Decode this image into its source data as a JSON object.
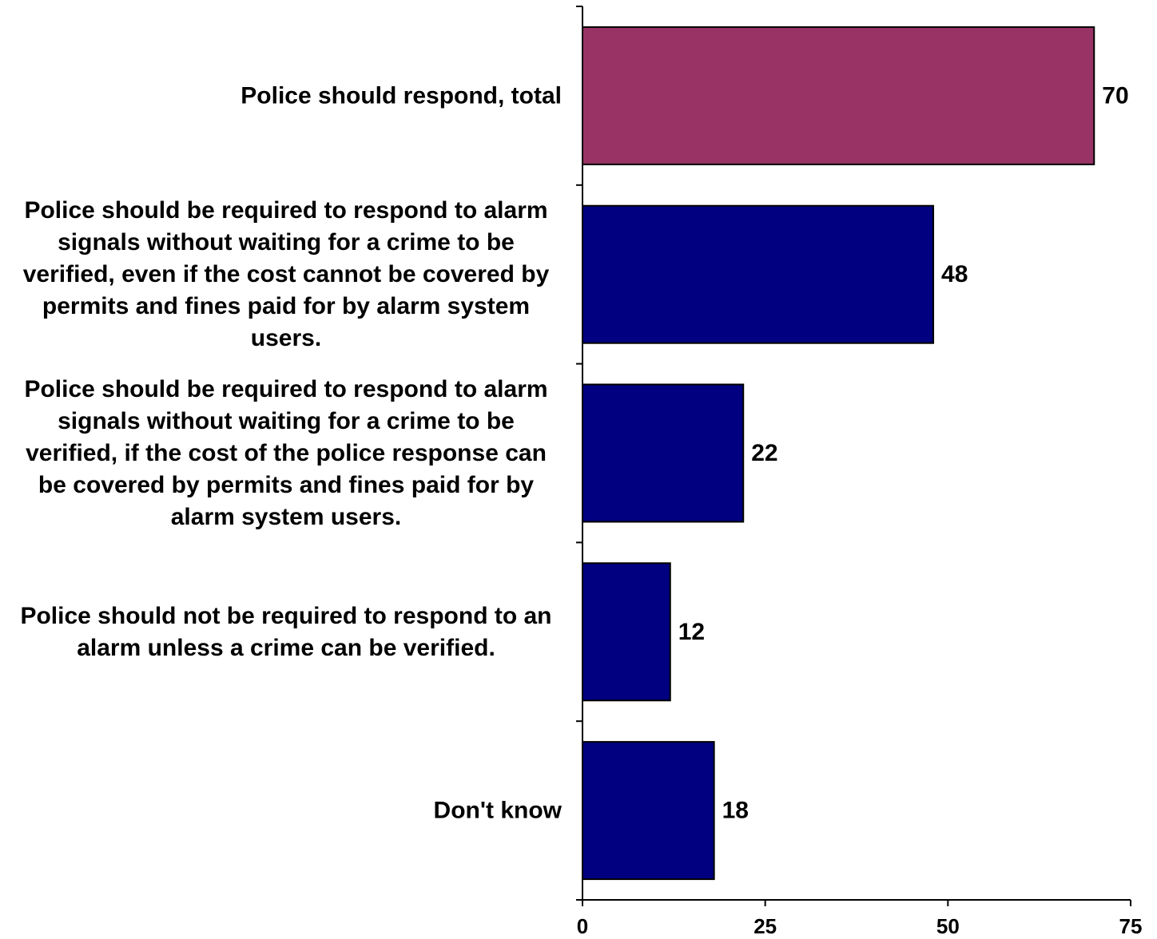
{
  "chart_data": {
    "type": "bar",
    "orientation": "horizontal",
    "categories": [
      "Police should respond, total",
      "Police should be required to respond to alarm signals without waiting for a crime to be verified, even if the cost cannot be covered by permits and fines paid for by alarm system users.",
      "Police should be required to respond to alarm signals without waiting for a crime to be verified, if the cost of the police response can be covered by permits and fines paid for by alarm system users.",
      "Police should not be required to respond to an alarm unless a crime can be verified.",
      "Don't know"
    ],
    "category_lines": [
      [
        "Police should respond, total"
      ],
      [
        "Police should be required to respond to alarm",
        "signals without waiting for a crime to be",
        "verified, even if the cost cannot be covered by",
        "permits and fines paid for by alarm system",
        "users."
      ],
      [
        "Police should be required to respond to alarm",
        "signals without waiting for a crime to be",
        "verified, if the cost of the police response can",
        "be covered by permits and fines paid for by",
        "alarm system users."
      ],
      [
        "Police should not be required to respond to an",
        "alarm unless a crime can be verified."
      ],
      [
        "Don't know"
      ]
    ],
    "values": [
      70,
      48,
      22,
      12,
      18
    ],
    "data_labels": [
      "70",
      "48",
      "22",
      "12",
      "18"
    ],
    "bar_colors": [
      "#993366",
      "#000080",
      "#000080",
      "#000080",
      "#000080"
    ],
    "xlim": [
      0,
      75
    ],
    "xticks": [
      0,
      25,
      50,
      75
    ],
    "xtick_labels": [
      "0",
      "25",
      "50",
      "75"
    ],
    "title": "",
    "xlabel": "",
    "ylabel": "",
    "grid": false,
    "legend": "none"
  }
}
